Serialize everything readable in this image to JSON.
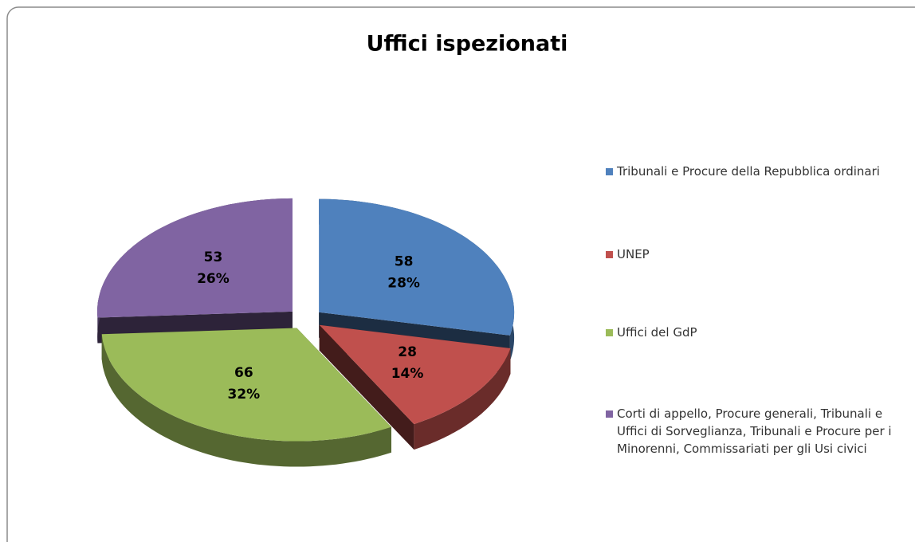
{
  "chart_data": {
    "type": "pie",
    "title": "Uffici ispezionati",
    "categories": [
      "Tribunali e Procure della Repubblica ordinari",
      "UNEP",
      "Uffici del GdP",
      "Corti di appello, Procure generali, Tribunali e Uffici di Sorveglianza, Tribunali e Procure per i Minorenni, Commissariati per gli Usi civici"
    ],
    "values": [
      58,
      28,
      66,
      53
    ],
    "percent_labels": [
      "28%",
      "14%",
      "32%",
      "26%"
    ],
    "colors": [
      "#4f81bd",
      "#c0504d",
      "#9bbb59",
      "#8064a2"
    ],
    "legend": "right"
  }
}
